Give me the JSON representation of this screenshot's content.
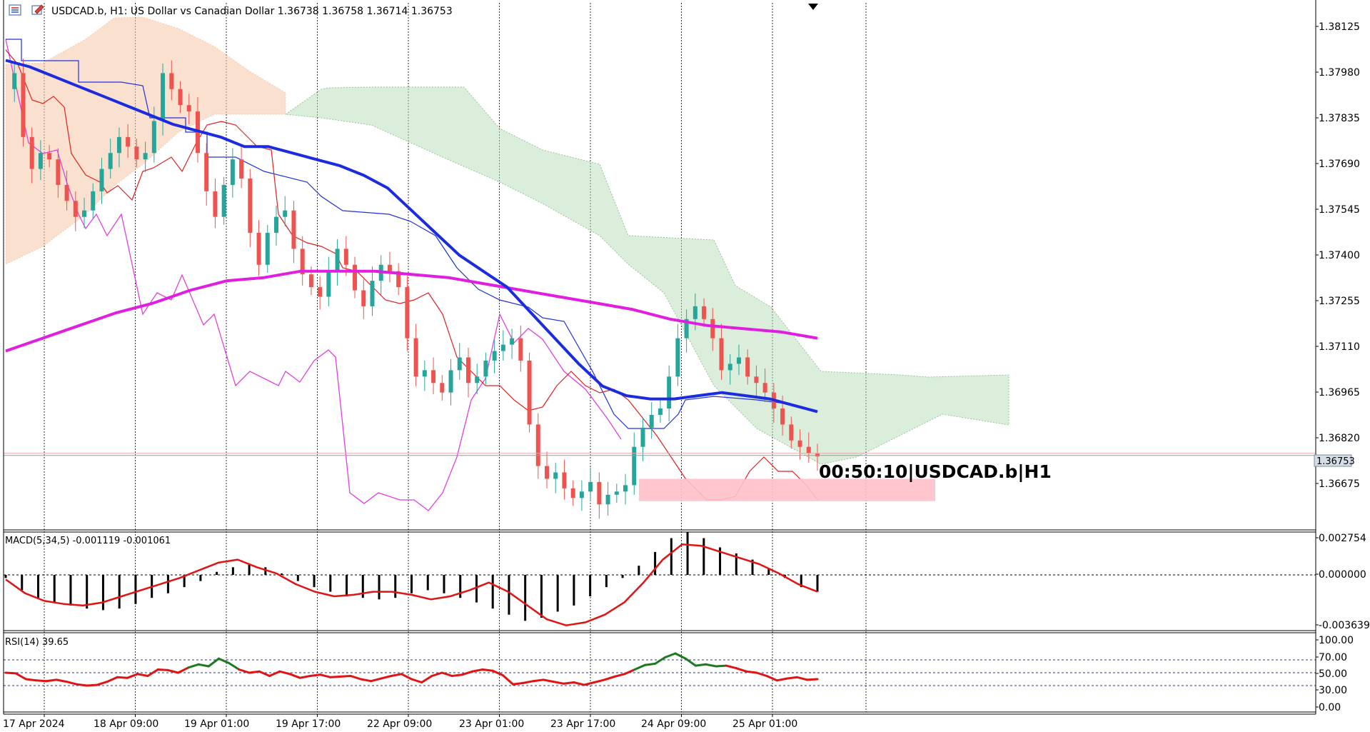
{
  "header": {
    "symbol_line": "USDCAD.b, H1:  US Dollar vs Canadian Dollar  1.36738 1.36758 1.36714 1.36753"
  },
  "timer_label": "00:50:10|USDCAD.b|H1",
  "current_price": "1.36753",
  "colors": {
    "bull": "#26a69a",
    "bear": "#ef5350",
    "sma_fast": "#1a2be0",
    "sma_slow": "#e01ee0",
    "kumo_bear": "#f0a070",
    "kumo_bull": "#2e8b2e",
    "tenkan": "#e02020",
    "kijun": "#2030e0",
    "chikou": "#e040e0",
    "zone": "#ffc0cb",
    "rsi_up": "#1e7a1e",
    "rsi_down": "#e01414"
  },
  "chart_data": [
    {
      "type": "line",
      "subtype": "candlestick",
      "y_ticks": [
        "1.38125",
        "1.37980",
        "1.37835",
        "1.37690",
        "1.37545",
        "1.37400",
        "1.37255",
        "1.37110",
        "1.36965",
        "1.36820",
        "1.36675"
      ],
      "ylim": [
        1.3652,
        1.3817
      ],
      "x_ticks": [
        "17 Apr 2024",
        "18 Apr 09:00",
        "19 Apr 01:00",
        "19 Apr 17:00",
        "22 Apr 09:00",
        "23 Apr 01:00",
        "23 Apr 17:00",
        "24 Apr 09:00",
        "25 Apr 01:00"
      ],
      "close_path": [
        1.379,
        1.3795,
        1.3775,
        1.3765,
        1.377,
        1.3768,
        1.376,
        1.3755,
        1.375,
        1.3752,
        1.3758,
        1.3765,
        1.377,
        1.3775,
        1.3772,
        1.3768,
        1.377,
        1.378,
        1.3795,
        1.379,
        1.3785,
        1.3783,
        1.377,
        1.3758,
        1.375,
        1.376,
        1.3768,
        1.3762,
        1.3745,
        1.3735,
        1.3745,
        1.375,
        1.3752,
        1.374,
        1.3732,
        1.3728,
        1.3725,
        1.3733,
        1.374,
        1.3735,
        1.3727,
        1.3722,
        1.373,
        1.3735,
        1.3733,
        1.3728,
        1.3712,
        1.37,
        1.3702,
        1.3698,
        1.3695,
        1.3702,
        1.3706,
        1.3698,
        1.37,
        1.3705,
        1.3708,
        1.371,
        1.3712,
        1.3705,
        1.3685,
        1.3672,
        1.3668,
        1.367,
        1.3665,
        1.3662,
        1.3664,
        1.3667,
        1.366,
        1.3663,
        1.3664,
        1.3666,
        1.3678,
        1.3684,
        1.3688,
        1.369,
        1.37,
        1.3712,
        1.3718,
        1.3722,
        1.3718,
        1.3712,
        1.3702,
        1.3704,
        1.3706,
        1.37,
        1.3698,
        1.3695,
        1.369,
        1.3685,
        1.368,
        1.3678,
        1.3676,
        1.3675
      ],
      "sma_fast": [
        1.3799,
        1.3797,
        1.3794,
        1.3791,
        1.3788,
        1.3785,
        1.3782,
        1.3779,
        1.3777,
        1.3775,
        1.3772,
        1.3772,
        1.377,
        1.3768,
        1.3766,
        1.3763,
        1.3759,
        1.3752,
        1.3745,
        1.3738,
        1.3733,
        1.3728,
        1.372,
        1.3712,
        1.3704,
        1.3697,
        1.3694,
        1.3693,
        1.3693,
        1.3694,
        1.3695,
        1.3694,
        1.3693,
        1.3691,
        1.3689
      ],
      "sma_slow": [
        1.3708,
        1.3712,
        1.3716,
        1.372,
        1.3723,
        1.3727,
        1.373,
        1.3731,
        1.3733,
        1.3733,
        1.3733,
        1.3732,
        1.3731,
        1.3729,
        1.3727,
        1.3725,
        1.3723,
        1.3721,
        1.3718,
        1.3716,
        1.3715,
        1.3714,
        1.3712
      ],
      "zone": [
        1.3661,
        1.3668
      ]
    },
    {
      "type": "bar",
      "title": "MACD(5,34,5) -0.001119 -0.001061",
      "y_ticks": [
        "0.002754",
        "0.000000",
        "-0.003639"
      ],
      "ylim": [
        -0.003639,
        0.002754
      ],
      "histogram": [
        -0.0002,
        -0.001,
        -0.0015,
        -0.0018,
        -0.002,
        -0.0022,
        -0.0023,
        -0.0022,
        -0.0019,
        -0.0015,
        -0.0012,
        -0.0008,
        -0.0004,
        0.0002,
        0.0005,
        0.0007,
        0.0005,
        0.0001,
        -0.0004,
        -0.0008,
        -0.0011,
        -0.0014,
        -0.0015,
        -0.0016,
        -0.0015,
        -0.0012,
        -0.001,
        -0.0012,
        -0.0015,
        -0.0018,
        -0.0022,
        -0.0026,
        -0.003,
        -0.0028,
        -0.0024,
        -0.002,
        -0.0014,
        -0.0008,
        -0.0002,
        0.0006,
        0.0015,
        0.0024,
        0.0028,
        0.0024,
        0.0018,
        0.0014,
        0.001,
        0.0004,
        -0.0002,
        -0.0008,
        -0.0011
      ],
      "signal": [
        -0.0003,
        -0.0012,
        -0.0017,
        -0.0019,
        -0.002,
        -0.0018,
        -0.0014,
        -0.001,
        -0.0006,
        -0.0002,
        0.0003,
        0.0008,
        0.001,
        0.0005,
        0.0001,
        -0.0006,
        -0.0011,
        -0.0014,
        -0.0013,
        -0.0011,
        -0.0011,
        -0.0013,
        -0.0016,
        -0.0014,
        -0.001,
        -0.0005,
        -0.0011,
        -0.002,
        -0.0029,
        -0.0033,
        -0.0031,
        -0.0026,
        -0.0018,
        -0.0005,
        0.001,
        0.002,
        0.0019,
        0.0015,
        0.0011,
        0.0007,
        0.0001,
        -0.0006,
        -0.0011
      ]
    },
    {
      "type": "line",
      "title": "RSI(14) 39.65",
      "y_ticks": [
        "100.00",
        "70.00",
        "50.00",
        "30.00",
        "0.00"
      ],
      "ylim": [
        0,
        100
      ],
      "levels": [
        70,
        50,
        30
      ],
      "values": [
        50,
        49,
        40,
        38,
        37,
        39,
        36,
        32,
        30,
        31,
        36,
        43,
        42,
        48,
        45,
        55,
        54,
        50,
        58,
        63,
        60,
        72,
        65,
        55,
        50,
        52,
        45,
        52,
        48,
        42,
        45,
        47,
        43,
        44,
        45,
        40,
        37,
        41,
        45,
        48,
        40,
        35,
        45,
        50,
        45,
        47,
        52,
        55,
        53,
        46,
        32,
        34,
        37,
        39,
        36,
        33,
        35,
        31,
        35,
        39,
        44,
        48,
        55,
        62,
        64,
        74,
        80,
        72,
        61,
        63,
        60,
        61,
        57,
        52,
        50,
        45,
        38,
        41,
        43,
        39,
        40
      ]
    }
  ]
}
